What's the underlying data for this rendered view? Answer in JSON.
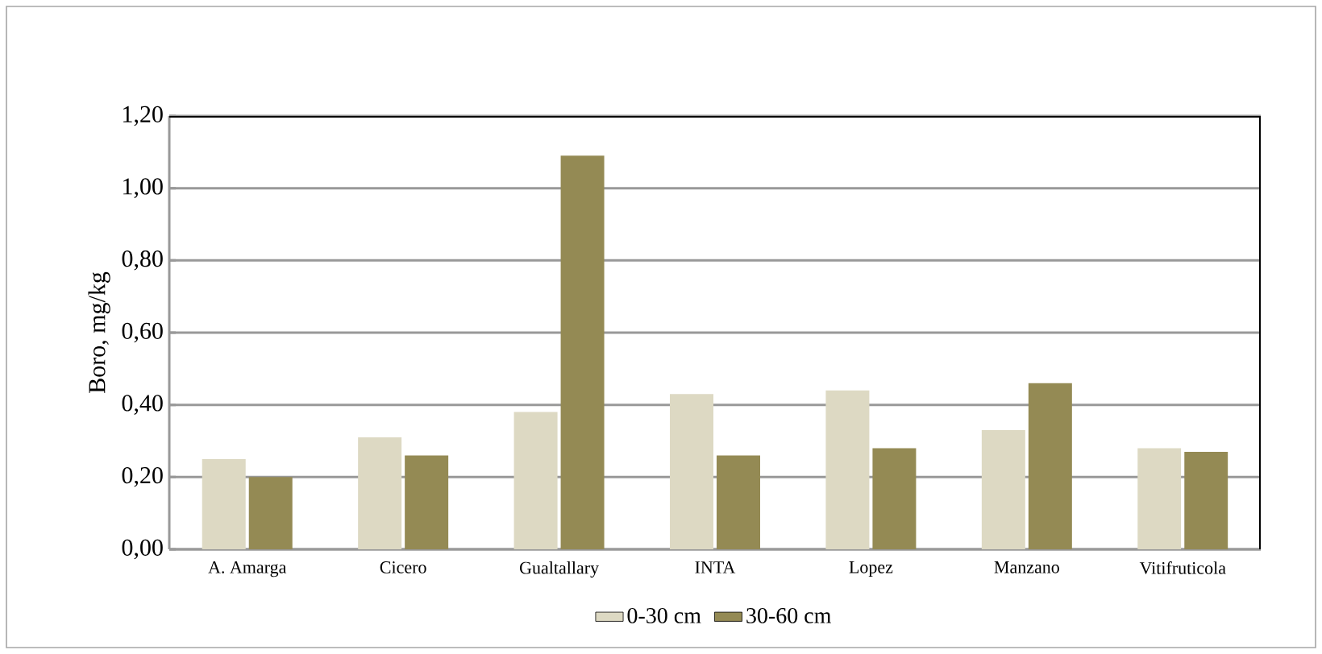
{
  "chart_data": {
    "type": "bar",
    "ylabel": "Boro, mg/kg",
    "categories": [
      "A. Amarga",
      "Cicero",
      "Gualtallary",
      "INTA",
      "Lopez",
      "Manzano",
      "Vitifruticola"
    ],
    "series": [
      {
        "name": "0-30 cm",
        "color": "#ddd9c3",
        "values": [
          0.25,
          0.31,
          0.38,
          0.43,
          0.44,
          0.33,
          0.28
        ]
      },
      {
        "name": "30-60 cm",
        "color": "#948a54",
        "values": [
          0.2,
          0.26,
          1.09,
          0.26,
          0.28,
          0.46,
          0.27
        ]
      }
    ],
    "ylim": [
      0,
      1.2
    ],
    "yticks": [
      {
        "value": 0,
        "label": "0,00"
      },
      {
        "value": 0.2,
        "label": "0,20"
      },
      {
        "value": 0.4,
        "label": "0,40"
      },
      {
        "value": 0.6,
        "label": "0,60"
      },
      {
        "value": 0.8,
        "label": "0,80"
      },
      {
        "value": 1.0,
        "label": "1,00"
      },
      {
        "value": 1.2,
        "label": "1,20"
      }
    ],
    "grid": "y",
    "legend": "bottom"
  }
}
